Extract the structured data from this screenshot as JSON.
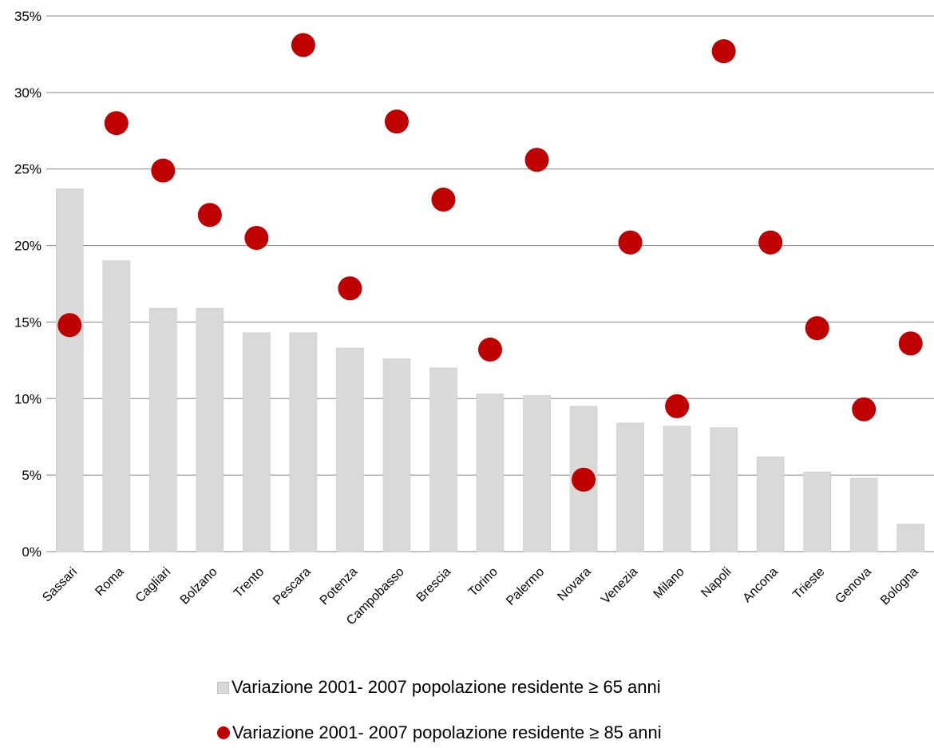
{
  "chart_data": {
    "type": "bar",
    "categories": [
      "Sassari",
      "Roma",
      "Cagliari",
      "Bolzano",
      "Trento",
      "Pescara",
      "Potenza",
      "Campobasso",
      "Brescia",
      "Torino",
      "Palermo",
      "Novara",
      "Venezia",
      "Milano",
      "Napoli",
      "Ancona",
      "Trieste",
      "Genova",
      "Bologna"
    ],
    "series": [
      {
        "name": "Variazione 2001- 2007 popolazione residente ≥ 65 anni",
        "type": "bar",
        "color": "#d9d9d9",
        "values": [
          23.7,
          19.0,
          15.9,
          15.9,
          14.3,
          14.3,
          13.3,
          12.6,
          12.0,
          10.3,
          10.2,
          9.5,
          8.4,
          8.2,
          8.1,
          6.2,
          5.2,
          4.8,
          1.8
        ]
      },
      {
        "name": "Variazione 2001- 2007 popolazione residente ≥ 85 anni",
        "type": "scatter",
        "color": "#c00000",
        "values": [
          14.8,
          28.0,
          24.9,
          22.0,
          20.5,
          33.1,
          17.2,
          28.1,
          23.0,
          13.2,
          25.6,
          4.7,
          20.2,
          9.5,
          32.7,
          20.2,
          14.6,
          9.3,
          13.6
        ]
      }
    ],
    "y_ticks": [
      "0%",
      "5%",
      "10%",
      "15%",
      "20%",
      "25%",
      "30%",
      "35%"
    ],
    "ylim": [
      0,
      35
    ],
    "grid": true,
    "legend_position": "bottom"
  },
  "legend": {
    "bar_label": "Variazione 2001- 2007 popolazione residente ≥ 65 anni",
    "dot_label": "Variazione 2001- 2007 popolazione residente ≥ 85 anni"
  }
}
